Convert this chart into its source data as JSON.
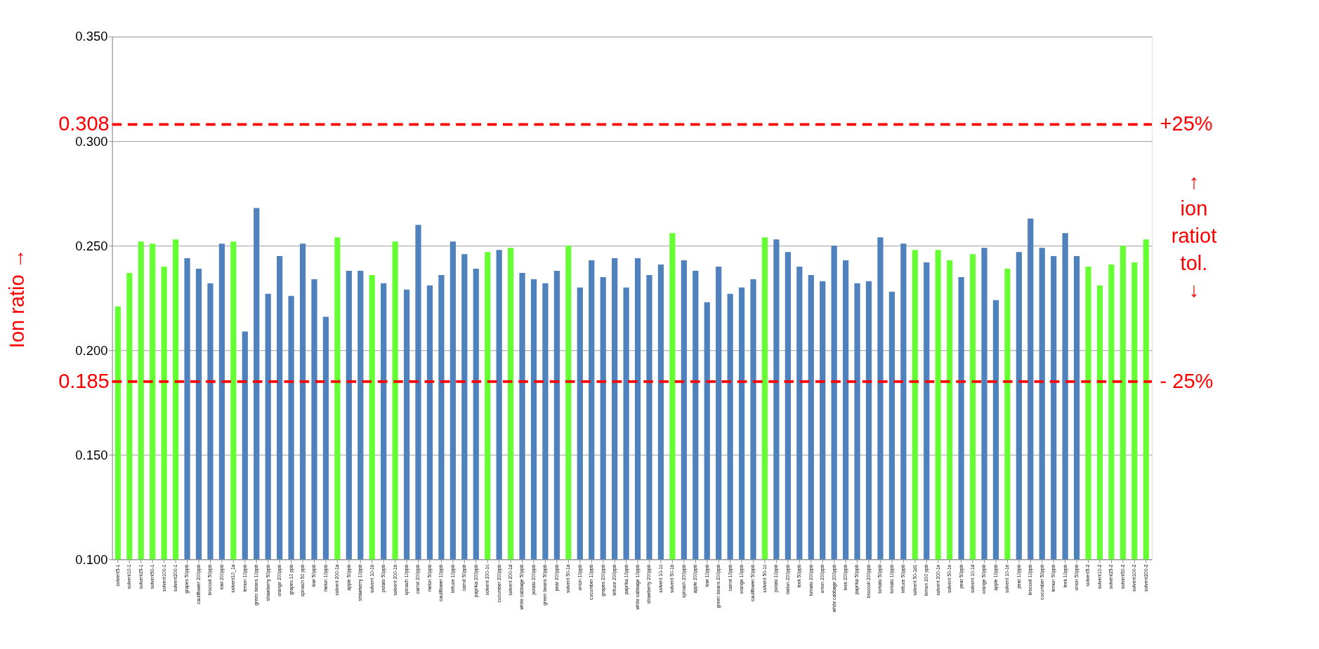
{
  "chart_data": {
    "type": "bar",
    "ylabel": "Ion ratio →",
    "categories": [
      "solvent5-1",
      "solvent10-1",
      "solvent25-1",
      "solvent50-1",
      "solvent100-1",
      "solvent200-1",
      "grapes 50ppb",
      "cauliflower 200ppb",
      "broccoli 50ppb",
      "kiwi 200ppb",
      "solvent10_1a",
      "lemon 10ppb",
      "green beans 10ppb",
      "strawberry 50ppb",
      "orange 200ppb",
      "grapes 10 ppb",
      "spinach 50 ppb",
      "kiwi 50ppb",
      "melon 10ppb",
      "solvent 200-1a",
      "apple 50ppb",
      "strawberry 10ppb",
      "solvent 10-1b",
      "potato 50ppb",
      "solvent 200-1b",
      "spinach 10ppb",
      "carrot 200ppb",
      "melon 50ppb",
      "cauliflower 10ppb",
      "lettuce 10ppb",
      "carrot 50ppb",
      "paprika 200ppb",
      "solvent 200-1c",
      "cucumber 200ppb",
      "solvent 200-1d",
      "white cabbage 50ppb",
      "potato 200ppb",
      "green beans 50ppb",
      "pear 200ppb",
      "solvent 50-1a",
      "onion 10ppb",
      "cucumber 10ppb",
      "grapes 200ppb",
      "lettuce 200ppb",
      "paprika 10ppb",
      "white cabbage 10ppb",
      "strawberry 200ppb",
      "solvent 10-1c",
      "solvent 50-1b",
      "spinach 200ppb",
      "apple 200ppb",
      "kiwi 10ppb",
      "green beans 200ppb",
      "carrot 10ppb",
      "orange 10ppb",
      "cauliflower 50ppb",
      "solvent 50-1c",
      "potato 10ppb",
      "melon 200ppb",
      "leek 50ppb",
      "tomato 200ppb",
      "onion 200ppb",
      "white cabbage 200ppb",
      "leek 200ppb",
      "paprika 50ppb",
      "broccoli 200ppb",
      "tomato 50ppb",
      "tomato 10ppb",
      "lettuce 50ppb",
      "solvent 50-1d1",
      "lemon 200 ppb",
      "solvent 200-1e",
      "solvent 50-1e",
      "pear 50ppb",
      "solvent 10-1d",
      "orange 50ppb",
      "apple 10ppb",
      "solvent 10-1e",
      "pear 10ppb",
      "broccoli 10ppb",
      "cucumber 50ppb",
      "lemon 50ppb",
      "leek 10ppb",
      "onion 50ppb",
      "solvent5-2",
      "solvent10-2",
      "solvent25-2",
      "solvent50-2",
      "solvent100-2",
      "solvent200-2"
    ],
    "values": [
      0.221,
      0.237,
      0.252,
      0.251,
      0.24,
      0.253,
      0.244,
      0.239,
      0.232,
      0.251,
      0.252,
      0.209,
      0.268,
      0.227,
      0.245,
      0.226,
      0.251,
      0.234,
      0.216,
      0.254,
      0.238,
      0.238,
      0.236,
      0.232,
      0.252,
      0.229,
      0.26,
      0.231,
      0.236,
      0.252,
      0.246,
      0.239,
      0.247,
      0.248,
      0.249,
      0.237,
      0.234,
      0.232,
      0.238,
      0.25,
      0.23,
      0.243,
      0.235,
      0.244,
      0.23,
      0.244,
      0.236,
      0.241,
      0.256,
      0.243,
      0.238,
      0.223,
      0.24,
      0.227,
      0.23,
      0.234,
      0.254,
      0.253,
      0.247,
      0.24,
      0.236,
      0.233,
      0.25,
      0.243,
      0.232,
      0.233,
      0.254,
      0.228,
      0.251,
      0.248,
      0.242,
      0.248,
      0.243,
      0.235,
      0.246,
      0.249,
      0.224,
      0.239,
      0.247,
      0.263,
      0.249,
      0.245,
      0.256,
      0.245,
      0.24,
      0.231,
      0.241,
      0.25,
      0.242,
      0.253
    ],
    "colors": [
      "#66ff33",
      "#66ff33",
      "#66ff33",
      "#66ff33",
      "#66ff33",
      "#66ff33",
      "#4f81bd",
      "#4f81bd",
      "#4f81bd",
      "#4f81bd",
      "#66ff33",
      "#4f81bd",
      "#4f81bd",
      "#4f81bd",
      "#4f81bd",
      "#4f81bd",
      "#4f81bd",
      "#4f81bd",
      "#4f81bd",
      "#66ff33",
      "#4f81bd",
      "#4f81bd",
      "#66ff33",
      "#4f81bd",
      "#66ff33",
      "#4f81bd",
      "#4f81bd",
      "#4f81bd",
      "#4f81bd",
      "#4f81bd",
      "#4f81bd",
      "#4f81bd",
      "#66ff33",
      "#4f81bd",
      "#66ff33",
      "#4f81bd",
      "#4f81bd",
      "#4f81bd",
      "#4f81bd",
      "#66ff33",
      "#4f81bd",
      "#4f81bd",
      "#4f81bd",
      "#4f81bd",
      "#4f81bd",
      "#4f81bd",
      "#4f81bd",
      "#4f81bd",
      "#66ff33",
      "#4f81bd",
      "#4f81bd",
      "#4f81bd",
      "#4f81bd",
      "#4f81bd",
      "#4f81bd",
      "#4f81bd",
      "#66ff33",
      "#4f81bd",
      "#4f81bd",
      "#4f81bd",
      "#4f81bd",
      "#4f81bd",
      "#4f81bd",
      "#4f81bd",
      "#4f81bd",
      "#4f81bd",
      "#4f81bd",
      "#4f81bd",
      "#4f81bd",
      "#66ff33",
      "#4f81bd",
      "#66ff33",
      "#66ff33",
      "#4f81bd",
      "#66ff33",
      "#4f81bd",
      "#4f81bd",
      "#66ff33",
      "#4f81bd",
      "#4f81bd",
      "#4f81bd",
      "#4f81bd",
      "#4f81bd",
      "#4f81bd",
      "#66ff33",
      "#66ff33",
      "#66ff33",
      "#66ff33",
      "#66ff33",
      "#66ff33"
    ],
    "ylim": [
      0.1,
      0.35
    ],
    "yticks": [
      {
        "value": 0.1,
        "label": "0.100"
      },
      {
        "value": 0.15,
        "label": "0.150"
      },
      {
        "value": 0.2,
        "label": "0.200"
      },
      {
        "value": 0.25,
        "label": "0.250"
      },
      {
        "value": 0.3,
        "label": "0.300"
      },
      {
        "value": 0.35,
        "label": "0.350"
      }
    ],
    "grid": "y",
    "ref_lines": [
      {
        "axis": "y",
        "value": 0.308,
        "label": "0.308",
        "color": "#ff0000",
        "line_style": "dashed"
      },
      {
        "axis": "y",
        "value": 0.185,
        "label": "0.185",
        "color": "#ff0000",
        "line_style": "dashed"
      }
    ],
    "annotations": [
      "+25%",
      "- 25%",
      "↑\nion\nratiot\ntol.\n↓"
    ]
  }
}
